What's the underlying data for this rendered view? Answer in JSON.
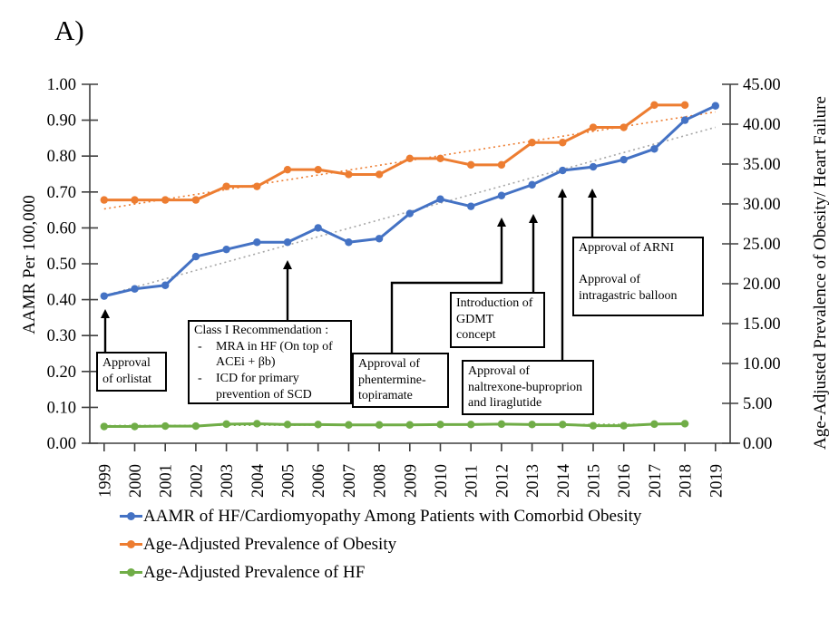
{
  "panel_label": "A)",
  "axes": {
    "left": {
      "title": "AAMR Per 100,000",
      "ticks": [
        "1.00",
        "0.90",
        "0.80",
        "0.70",
        "0.60",
        "0.50",
        "0.40",
        "0.30",
        "0.20",
        "0.10",
        "0.00"
      ]
    },
    "right": {
      "title": "Age-Adjusted Prevalence of Obesity/ Heart Failure",
      "ticks": [
        "45.00",
        "40.00",
        "35.00",
        "30.00",
        "25.00",
        "20.00",
        "15.00",
        "10.00",
        "5.00",
        "0.00"
      ]
    }
  },
  "chart_data": {
    "type": "line",
    "categories": [
      "1999",
      "2000",
      "2001",
      "2002",
      "2003",
      "2004",
      "2005",
      "2006",
      "2007",
      "2008",
      "2009",
      "2010",
      "2011",
      "2012",
      "2013",
      "2014",
      "2015",
      "2016",
      "2017",
      "2018",
      "2019"
    ],
    "left_axis": {
      "label": "AAMR Per 100,000",
      "range": [
        0,
        1.0
      ],
      "tick_step": 0.1
    },
    "right_axis": {
      "label": "Age-Adjusted Prevalence of Obesity/ Heart Failure",
      "range": [
        0,
        45
      ],
      "tick_step": 5
    },
    "grid": false,
    "legend_position": "bottom-left",
    "trendline_style": "linear-dotted",
    "series": [
      {
        "name": "AAMR of HF/Cardiomyopathy Among Patients with Comorbid Obesity",
        "axis": "left",
        "color": "#4472C4",
        "trend_color": "#A6A6A6",
        "trend_extend_to_index": 20,
        "values": [
          0.41,
          0.43,
          0.44,
          0.52,
          0.54,
          0.56,
          0.56,
          0.6,
          0.56,
          0.57,
          0.64,
          0.68,
          0.66,
          0.69,
          0.72,
          0.76,
          0.77,
          0.79,
          0.82,
          0.9,
          0.94
        ]
      },
      {
        "name": "Age-Adjusted Prevalence of Obesity",
        "axis": "right",
        "color": "#ED7D31",
        "trend_color": "#ED7D31",
        "trend_extend_to_index": 20,
        "values": [
          30.5,
          30.5,
          30.5,
          30.5,
          32.2,
          32.2,
          34.3,
          34.3,
          33.7,
          33.7,
          35.7,
          35.7,
          34.9,
          34.9,
          37.7,
          37.7,
          39.6,
          39.6,
          42.4,
          42.4,
          null
        ]
      },
      {
        "name": "Age-Adjusted Prevalence of HF",
        "axis": "right",
        "color": "#70AD47",
        "trend_color": "#70AD47",
        "trend_extend_to_index": 19,
        "values": [
          2.1,
          2.1,
          2.15,
          2.15,
          2.4,
          2.45,
          2.35,
          2.35,
          2.3,
          2.3,
          2.3,
          2.35,
          2.35,
          2.4,
          2.35,
          2.35,
          2.2,
          2.2,
          2.4,
          2.45,
          null
        ]
      }
    ]
  },
  "annotations": {
    "orlistat": {
      "text": "Approval\nof orlistat"
    },
    "class1": {
      "title": "Class I Recommendation :",
      "bullet_marker": "-",
      "bullets": [
        "MRA in HF (On top of\nACEi + βb)",
        "ICD for primary\nprevention of SCD"
      ]
    },
    "phentermine": {
      "text": "Approval of\nphentermine-\ntopiramate"
    },
    "gdmt": {
      "text": "Introduction of\nGDMT\nconcept"
    },
    "naltrexone": {
      "text": "Approval of\nnaltrexone-buproprion\nand liraglutide"
    },
    "arni": {
      "text": "Approval of ARNI\n\nApproval of\nintragastric balloon"
    }
  }
}
